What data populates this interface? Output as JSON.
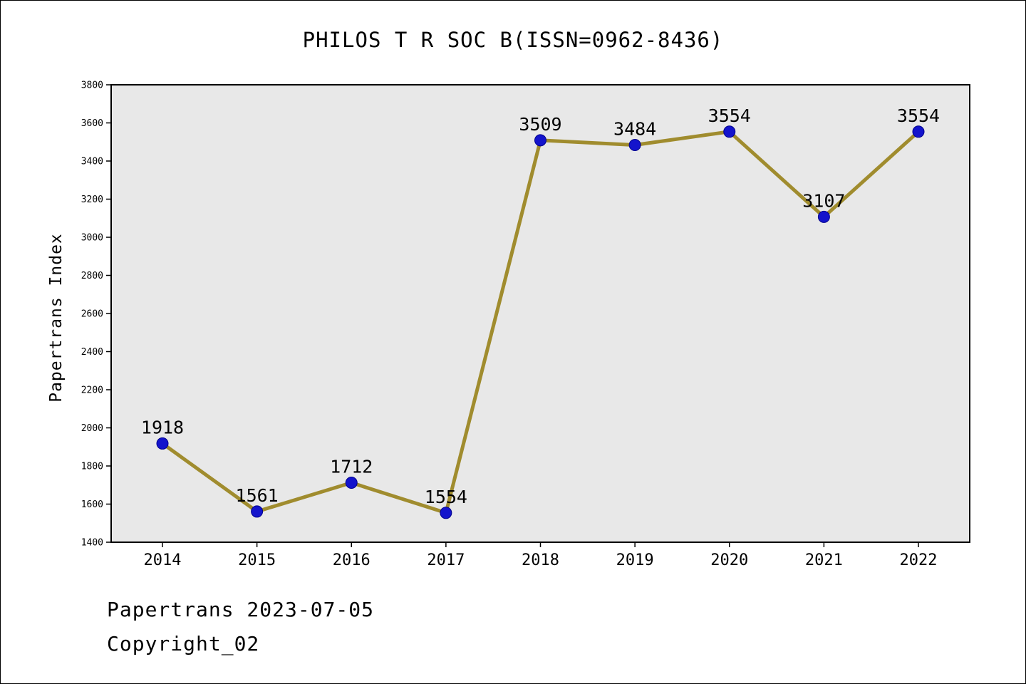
{
  "title": "PHILOS T R SOC B(ISSN=0962-8436)",
  "footer": {
    "line1": "Papertrans 2023-07-05",
    "line2": "Copyright_02"
  },
  "chart_data": {
    "type": "line",
    "title": "PHILOS T R SOC B(ISSN=0962-8436)",
    "categories": [
      "2014",
      "2015",
      "2016",
      "2017",
      "2018",
      "2019",
      "2020",
      "2021",
      "2022"
    ],
    "values": [
      1918,
      1561,
      1712,
      1554,
      3509,
      3484,
      3554,
      3107,
      3554
    ],
    "series_name": "Papertrans Index",
    "xlabel": "",
    "ylabel": "Papertrans Index",
    "ylim": [
      1400,
      3800
    ],
    "ytick_step": 200,
    "grid": false,
    "legend_position": "none",
    "line_color": "#a08c2e",
    "marker_color": "#1414cc",
    "marker_edge_color": "#00008c",
    "plot_background": "#e8e8e8",
    "axes_color": "#000000"
  }
}
